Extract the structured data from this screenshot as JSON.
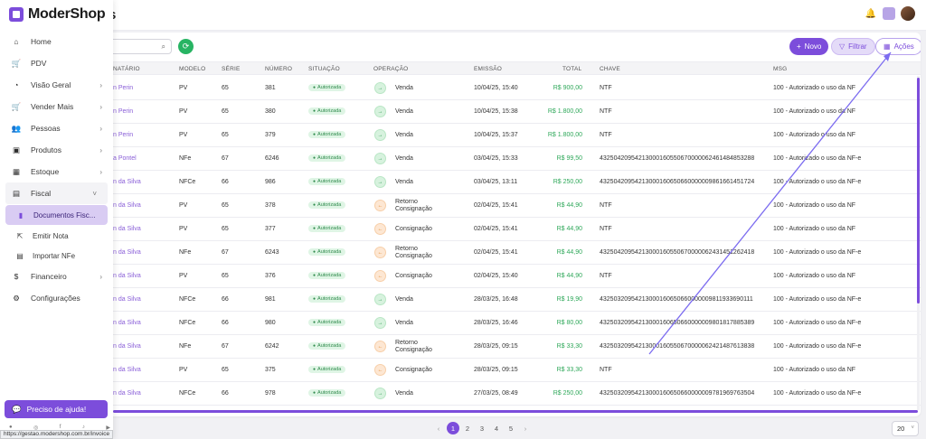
{
  "app": {
    "brand": "ModerShop",
    "page_title_partial": "s"
  },
  "sidebar": {
    "items": [
      {
        "label": "Home",
        "icon": "home-icon",
        "glyph": "⌂",
        "chevron": ""
      },
      {
        "label": "PDV",
        "icon": "cart-icon",
        "glyph": "🛒",
        "chevron": ""
      },
      {
        "label": "Visão Geral",
        "icon": "pie-chart-icon",
        "glyph": "◔",
        "chevron": "›"
      },
      {
        "label": "Vender Mais",
        "icon": "cart-plus-icon",
        "glyph": "🛒",
        "chevron": "›"
      },
      {
        "label": "Pessoas",
        "icon": "users-icon",
        "glyph": "👥",
        "chevron": "›"
      },
      {
        "label": "Produtos",
        "icon": "box-icon",
        "glyph": "▣",
        "chevron": "›"
      },
      {
        "label": "Estoque",
        "icon": "boxes-icon",
        "glyph": "▦",
        "chevron": "›"
      }
    ],
    "fiscal": {
      "label": "Fiscal",
      "chevron": "˅"
    },
    "fiscal_sub": [
      {
        "label": "Documentos Fisc...",
        "active": true
      },
      {
        "label": "Emitir Nota",
        "active": false
      },
      {
        "label": "Importar NFe",
        "active": false
      }
    ],
    "after": [
      {
        "label": "Financeiro",
        "icon": "dollar-icon",
        "glyph": "$",
        "chevron": "›"
      },
      {
        "label": "Configurações",
        "icon": "gear-icon",
        "glyph": "⚙",
        "chevron": ""
      }
    ],
    "help_label": "Preciso de ajuda!",
    "status_url": "https://gestao.modershop.com.br/invoice"
  },
  "toolbar": {
    "novo": "Novo",
    "filtrar": "Filtrar",
    "acoes": "Ações"
  },
  "table": {
    "headers": [
      "NATÁRIO",
      "MODELO",
      "SÉRIE",
      "NÚMERO",
      "SITUAÇÃO",
      "OPERAÇÃO",
      "EMISSÃO",
      "TOTAL",
      "CHAVE",
      "MSG"
    ],
    "rows": [
      {
        "dest": "n Perin",
        "modelo": "PV",
        "serie": "65",
        "numero": "381",
        "situacao": "Autorizada",
        "op_type": "green",
        "operacao": "Venda",
        "emissao": "10/04/25, 15:40",
        "total": "R$ 900,00",
        "chave": "NTF",
        "msg": "100 - Autorizado o uso da NF"
      },
      {
        "dest": "n Perin",
        "modelo": "PV",
        "serie": "65",
        "numero": "380",
        "situacao": "Autorizada",
        "op_type": "green",
        "operacao": "Venda",
        "emissao": "10/04/25, 15:38",
        "total": "R$ 1.800,00",
        "chave": "NTF",
        "msg": "100 - Autorizado o uso da NF"
      },
      {
        "dest": "n Perin",
        "modelo": "PV",
        "serie": "65",
        "numero": "379",
        "situacao": "Autorizada",
        "op_type": "green",
        "operacao": "Venda",
        "emissao": "10/04/25, 15:37",
        "total": "R$ 1.800,00",
        "chave": "NTF",
        "msg": "100 - Autorizado o uso da NF"
      },
      {
        "dest": "a Pontel",
        "modelo": "NFe",
        "serie": "67",
        "numero": "6246",
        "situacao": "Autorizada",
        "op_type": "green",
        "operacao": "Venda",
        "emissao": "03/04/25, 15:33",
        "total": "R$ 99,50",
        "chave": "43250420954213000160550670000062461484853288",
        "msg": "100 - Autorizado o uso da NF-e"
      },
      {
        "dest": "n da Silva",
        "modelo": "NFCe",
        "serie": "66",
        "numero": "986",
        "situacao": "Autorizada",
        "op_type": "green",
        "operacao": "Venda",
        "emissao": "03/04/25, 13:11",
        "total": "R$ 250,00",
        "chave": "43250420954213000160650660000009861661451724",
        "msg": "100 - Autorizado o uso da NF-e"
      },
      {
        "dest": "n da Silva",
        "modelo": "PV",
        "serie": "65",
        "numero": "378",
        "situacao": "Autorizada",
        "op_type": "orange",
        "operacao": "Retorno Consignação",
        "emissao": "02/04/25, 15:41",
        "total": "R$ 44,90",
        "chave": "NTF",
        "msg": "100 - Autorizado o uso da NF"
      },
      {
        "dest": "n da Silva",
        "modelo": "PV",
        "serie": "65",
        "numero": "377",
        "situacao": "Autorizada",
        "op_type": "orange",
        "operacao": "Consignação",
        "emissao": "02/04/25, 15:41",
        "total": "R$ 44,90",
        "chave": "NTF",
        "msg": "100 - Autorizado o uso da NF"
      },
      {
        "dest": "n da Silva",
        "modelo": "NFe",
        "serie": "67",
        "numero": "6243",
        "situacao": "Autorizada",
        "op_type": "orange",
        "operacao": "Retorno Consignação",
        "emissao": "02/04/25, 15:41",
        "total": "R$ 44,90",
        "chave": "43250420954213000160550670000062431451262418",
        "msg": "100 - Autorizado o uso da NF-e"
      },
      {
        "dest": "n da Silva",
        "modelo": "PV",
        "serie": "65",
        "numero": "376",
        "situacao": "Autorizada",
        "op_type": "orange",
        "operacao": "Consignação",
        "emissao": "02/04/25, 15:40",
        "total": "R$ 44,90",
        "chave": "NTF",
        "msg": "100 - Autorizado o uso da NF"
      },
      {
        "dest": "n da Silva",
        "modelo": "NFCe",
        "serie": "66",
        "numero": "981",
        "situacao": "Autorizada",
        "op_type": "green",
        "operacao": "Venda",
        "emissao": "28/03/25, 16:48",
        "total": "R$ 19,90",
        "chave": "43250320954213000160650660000009811933690111",
        "msg": "100 - Autorizado o uso da NF-e"
      },
      {
        "dest": "n da Silva",
        "modelo": "NFCe",
        "serie": "66",
        "numero": "980",
        "situacao": "Autorizada",
        "op_type": "green",
        "operacao": "Venda",
        "emissao": "28/03/25, 16:46",
        "total": "R$ 80,00",
        "chave": "43250320954213000160650660000009801817885389",
        "msg": "100 - Autorizado o uso da NF-e"
      },
      {
        "dest": "n da Silva",
        "modelo": "NFe",
        "serie": "67",
        "numero": "6242",
        "situacao": "Autorizada",
        "op_type": "orange",
        "operacao": "Retorno Consignação",
        "emissao": "28/03/25, 09:15",
        "total": "R$ 33,30",
        "chave": "43250320954213000160550670000062421487613838",
        "msg": "100 - Autorizado o uso da NF-e"
      },
      {
        "dest": "n da Silva",
        "modelo": "PV",
        "serie": "65",
        "numero": "375",
        "situacao": "Autorizada",
        "op_type": "orange",
        "operacao": "Consignação",
        "emissao": "28/03/25, 09:15",
        "total": "R$ 33,30",
        "chave": "NTF",
        "msg": "100 - Autorizado o uso da NF"
      },
      {
        "dest": "n da Silva",
        "modelo": "NFCe",
        "serie": "66",
        "numero": "978",
        "situacao": "Autorizada",
        "op_type": "green",
        "operacao": "Venda",
        "emissao": "27/03/25, 08:49",
        "total": "R$ 250,00",
        "chave": "43250320954213000160650660000009781969763504",
        "msg": "100 - Autorizado o uso da NF-e"
      }
    ]
  },
  "pagination": {
    "pages": [
      "1",
      "2",
      "3",
      "4",
      "5"
    ],
    "current": "1",
    "prev": "‹",
    "next": "›",
    "per_page": "20"
  },
  "colors": {
    "accent": "#7c4ddb",
    "success": "#28b463",
    "total_green": "#2fa85a"
  }
}
